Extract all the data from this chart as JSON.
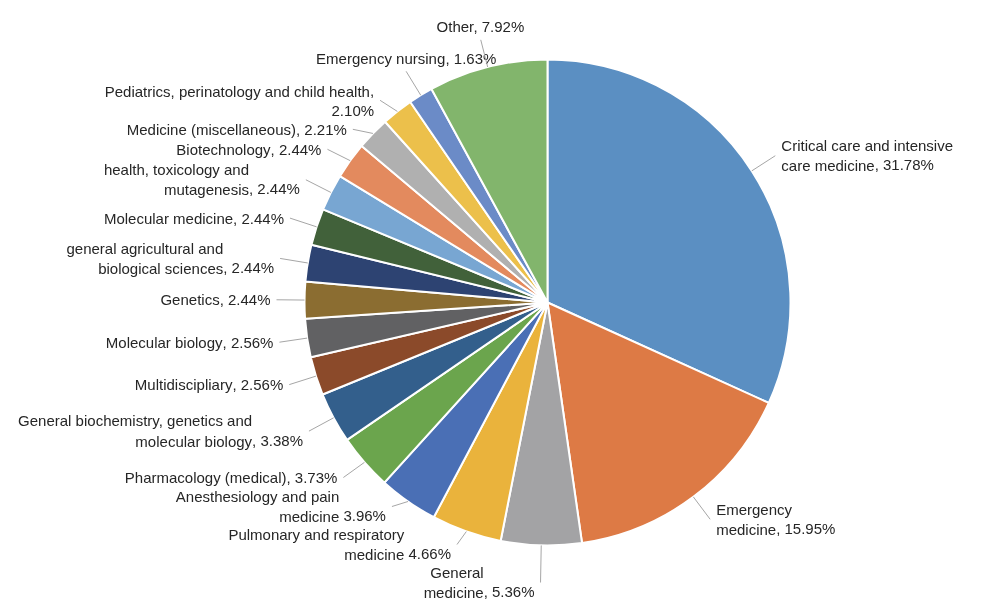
{
  "chart_data": {
    "type": "pie",
    "categories": [
      "Critical care and intensive\ncare medicine",
      "Emergency\nmedicine",
      "General\nmedicine",
      "Pulmonary and respiratory\nmedicine",
      "Anesthesiology and pain\nmedicine",
      "Pharmacology (medical)",
      "General biochemistry, genetics and\nmolecular biology",
      "Multidiscipliary",
      "Molecular biology",
      "Genetics",
      "general agricultural and\nbiological sciences",
      "Molecular medicine",
      "health, toxicology and\nmutagenesis",
      "Biotechnology",
      "Medicine (miscellaneous)",
      "Pediatrics, perinatology and child health",
      "Emergency nursing",
      "Other"
    ],
    "values": [
      31.78,
      15.95,
      5.36,
      4.66,
      3.96,
      3.73,
      3.38,
      2.56,
      2.56,
      2.44,
      2.44,
      2.44,
      2.44,
      2.44,
      2.21,
      2.1,
      1.63,
      7.92
    ],
    "value_labels": [
      ", 31.78%",
      ", 15.95%",
      ", 5.36%",
      "4.66%",
      "3.96%",
      ", 3.73%",
      ", 3.38%",
      ", 2.56%",
      ", 2.56%",
      ", 2.44%",
      ", 2.44%",
      ", 2.44%",
      ", 2.44%",
      ", 2.44%",
      ", 2.21%",
      ",\n2.10%",
      ", 1.63%",
      ", 7.92%"
    ],
    "colors": [
      "#5b8fc2",
      "#dd7a45",
      "#a3a3a5",
      "#eab33c",
      "#4a6fb5",
      "#6ba54d",
      "#335f8c",
      "#8b4a2a",
      "#616163",
      "#8b6d31",
      "#2d4372",
      "#41613a",
      "#78a6d2",
      "#e38a5e",
      "#b0b0b0",
      "#ecc04b",
      "#6b8bc7",
      "#82b56c"
    ],
    "legend": false
  }
}
